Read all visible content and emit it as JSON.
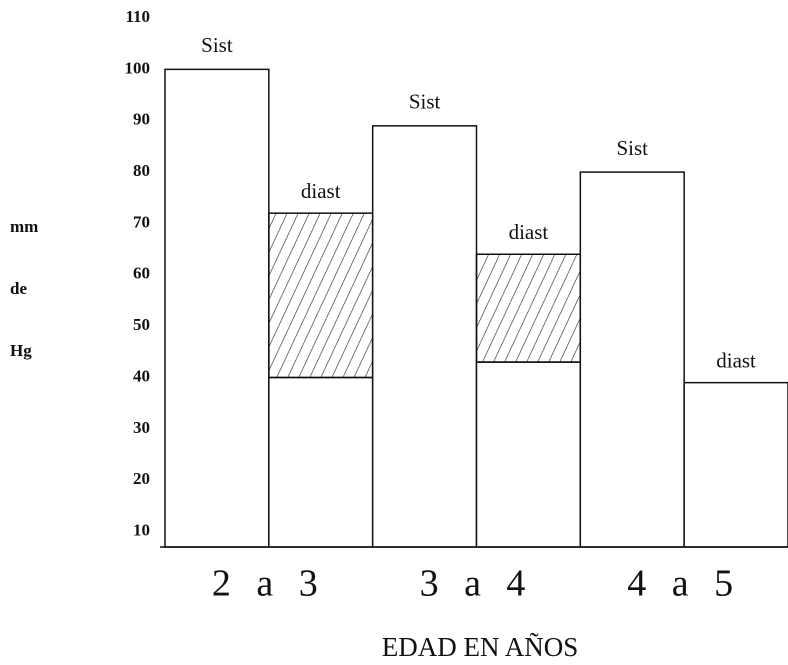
{
  "chart_data": {
    "type": "bar",
    "ylabel": [
      "mm",
      "de",
      "Hg"
    ],
    "xlabel": "EDAD EN AÑOS",
    "categories": [
      "2 a 3",
      "3 a 4",
      "4 a 5"
    ],
    "series": [
      {
        "name": "Sist",
        "color": "#ffffff",
        "values": [
          100,
          89,
          80
        ]
      },
      {
        "name": "diast",
        "color": "#ffffff",
        "values": [
          72,
          64,
          39
        ],
        "lows": [
          40,
          43,
          39
        ]
      }
    ],
    "ylim": [
      7,
      110
    ],
    "yticks": [
      10,
      20,
      30,
      40,
      50,
      60,
      70,
      80,
      90,
      100,
      110
    ]
  }
}
